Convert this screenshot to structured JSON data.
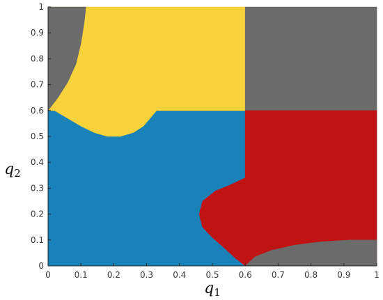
{
  "chart_data": {
    "type": "region_map",
    "xlabel": {
      "base": "q",
      "sub": "1"
    },
    "ylabel": {
      "base": "q",
      "sub": "2"
    },
    "xlim": [
      0,
      1
    ],
    "ylim": [
      0,
      1
    ],
    "xticks": [
      "0",
      "0.1",
      "0.2",
      "0.3",
      "0.4",
      "0.5",
      "0.6",
      "0.7",
      "0.8",
      "0.9",
      "1"
    ],
    "yticks": [
      "0",
      "0.1",
      "0.2",
      "0.3",
      "0.4",
      "0.5",
      "0.6",
      "0.7",
      "0.8",
      "0.9",
      "1"
    ],
    "grid": false,
    "regions": [
      {
        "id": "blue",
        "color": "#1a81b9",
        "points": [
          [
            0,
            0
          ],
          [
            1,
            0
          ],
          [
            1,
            0.6
          ],
          [
            0,
            0.6
          ]
        ]
      },
      {
        "id": "yellow",
        "color": "#f8d23a",
        "points": [
          [
            0,
            0.6
          ],
          [
            0.6,
            0.6
          ],
          [
            0.6,
            1
          ],
          [
            0,
            1
          ]
        ]
      },
      {
        "id": "gray-top-right",
        "color": "#6b6b6b",
        "points": [
          [
            0.6,
            0.6
          ],
          [
            1,
            0.6
          ],
          [
            1,
            1
          ],
          [
            0.6,
            1
          ]
        ]
      },
      {
        "id": "yellow-bump",
        "color": "#f8d23a",
        "points": [
          [
            0.02,
            0.6
          ],
          [
            0.06,
            0.57
          ],
          [
            0.1,
            0.54
          ],
          [
            0.14,
            0.515
          ],
          [
            0.18,
            0.5
          ],
          [
            0.22,
            0.5
          ],
          [
            0.26,
            0.515
          ],
          [
            0.29,
            0.54
          ],
          [
            0.31,
            0.57
          ],
          [
            0.33,
            0.6
          ]
        ]
      },
      {
        "id": "gray-top-left",
        "color": "#6b6b6b",
        "points": [
          [
            0,
            0.6
          ],
          [
            0.03,
            0.65
          ],
          [
            0.06,
            0.71
          ],
          [
            0.085,
            0.78
          ],
          [
            0.1,
            0.86
          ],
          [
            0.11,
            0.94
          ],
          [
            0.115,
            1
          ],
          [
            0,
            1
          ]
        ]
      },
      {
        "id": "red",
        "color": "#c01414",
        "points": [
          [
            0.6,
            0.6
          ],
          [
            1,
            0.6
          ],
          [
            1,
            0
          ],
          [
            0.6,
            0
          ],
          [
            0.57,
            0.03
          ],
          [
            0.54,
            0.065
          ],
          [
            0.5,
            0.11
          ],
          [
            0.47,
            0.15
          ],
          [
            0.46,
            0.2
          ],
          [
            0.47,
            0.25
          ],
          [
            0.51,
            0.29
          ],
          [
            0.55,
            0.31
          ],
          [
            0.6,
            0.34
          ]
        ]
      },
      {
        "id": "gray-bottom-right",
        "color": "#6b6b6b",
        "points": [
          [
            0.6,
            0
          ],
          [
            0.63,
            0.035
          ],
          [
            0.68,
            0.06
          ],
          [
            0.75,
            0.08
          ],
          [
            0.83,
            0.093
          ],
          [
            0.92,
            0.1
          ],
          [
            1,
            0.1
          ],
          [
            1,
            0
          ]
        ]
      }
    ]
  }
}
